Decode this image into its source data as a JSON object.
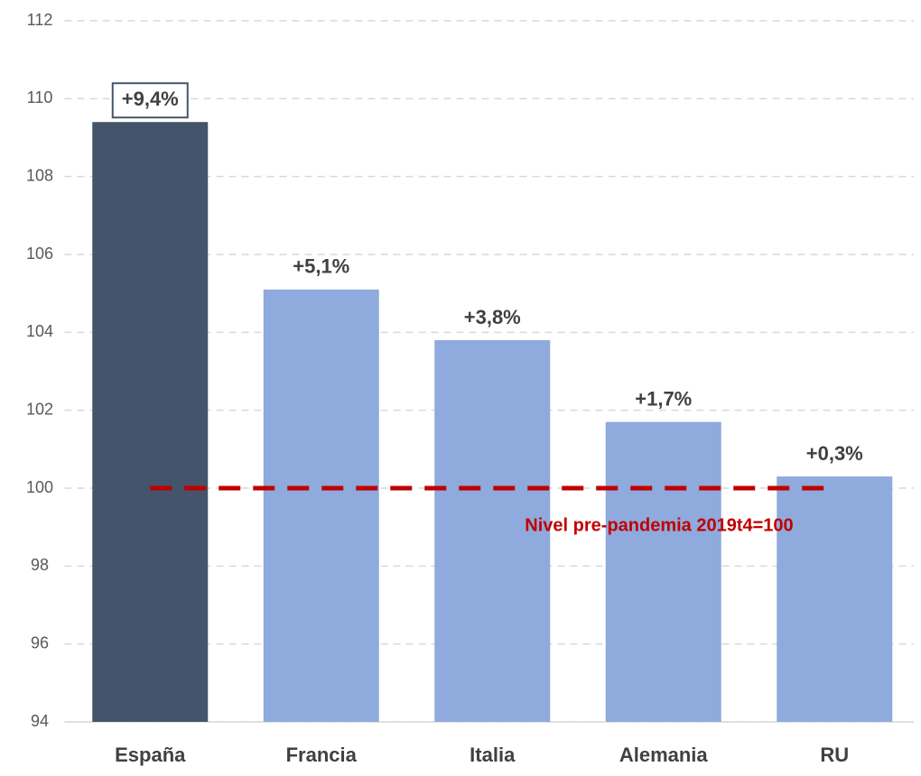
{
  "chart_data": {
    "type": "bar",
    "categories": [
      "España",
      "Francia",
      "Italia",
      "Alemania",
      "RU"
    ],
    "values": [
      109.4,
      105.1,
      103.8,
      101.7,
      100.3
    ],
    "value_labels": [
      "+9,4%",
      "+5,1%",
      "+3,8%",
      "+1,7%",
      "+0,3%"
    ],
    "colors": [
      "#44546a",
      "#8faadc",
      "#8faadc",
      "#8faadc",
      "#8faadc"
    ],
    "label_box": [
      true,
      false,
      false,
      false,
      false
    ],
    "ylim": [
      94,
      112
    ],
    "yticks": [
      94,
      96,
      98,
      100,
      102,
      104,
      106,
      108,
      110,
      112
    ],
    "grid": true,
    "reference_line": {
      "value": 100,
      "label": "Nivel pre-pandemia 2019t4=100",
      "color": "#c00000"
    }
  }
}
